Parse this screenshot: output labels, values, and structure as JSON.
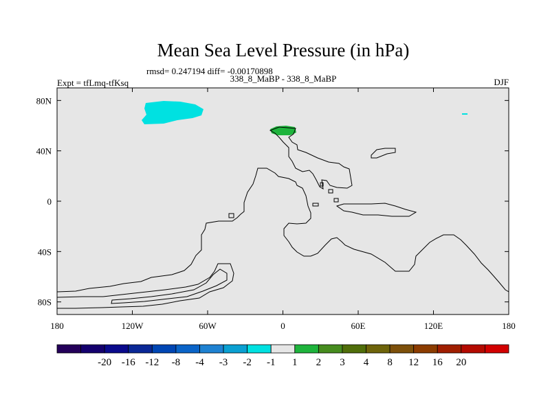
{
  "chart_data": {
    "type": "map",
    "title": "Mean Sea Level Pressure (in hPa)",
    "stats": "rmsd= 0.247194 diff= -0.00170898",
    "experiment": "Expt = tfLmq-tfKsq",
    "comparison": "338_8_MaBP - 338_8_MaBP",
    "season": "DJF",
    "x_ticks": [
      {
        "value": -180,
        "label": "180"
      },
      {
        "value": -120,
        "label": "120W"
      },
      {
        "value": -60,
        "label": "60W"
      },
      {
        "value": 0,
        "label": "0"
      },
      {
        "value": 60,
        "label": "60E"
      },
      {
        "value": 120,
        "label": "120E"
      },
      {
        "value": 180,
        "label": "180"
      }
    ],
    "y_ticks": [
      {
        "value": 80,
        "label": "80N"
      },
      {
        "value": 40,
        "label": "40N"
      },
      {
        "value": 0,
        "label": "0"
      },
      {
        "value": -40,
        "label": "40S"
      },
      {
        "value": -80,
        "label": "80S"
      }
    ],
    "lon_range": [
      -180,
      180
    ],
    "lat_range": [
      -90,
      90
    ],
    "background_color": "#e6e6e6",
    "colorbar": {
      "colors": [
        "#24005a",
        "#14006e",
        "#0a0a8c",
        "#0a2896",
        "#0046b4",
        "#0a64c8",
        "#1e82d2",
        "#0aa0d2",
        "#00e1e1",
        "#e6e6e6",
        "#1eb43c",
        "#468c1e",
        "#506e0a",
        "#6e640a",
        "#7d500a",
        "#8c3c00",
        "#a01e00",
        "#b40a00",
        "#d20000"
      ],
      "labels": [
        "-20",
        "-16",
        "-12",
        "-8",
        "-4",
        "-3",
        "-2",
        "-1",
        "1",
        "2",
        "3",
        "4",
        "8",
        "12",
        "16",
        "20"
      ]
    },
    "anomalies": [
      {
        "region": "north-pacific",
        "range": "-2 to -1",
        "color": "#00e1e1"
      },
      {
        "region": "north-atlantic",
        "range": "1 to 2",
        "color": "#1eb43c"
      },
      {
        "region": "northwest-pacific-speck",
        "range": "-2 to -1",
        "color": "#00e1e1"
      }
    ]
  }
}
